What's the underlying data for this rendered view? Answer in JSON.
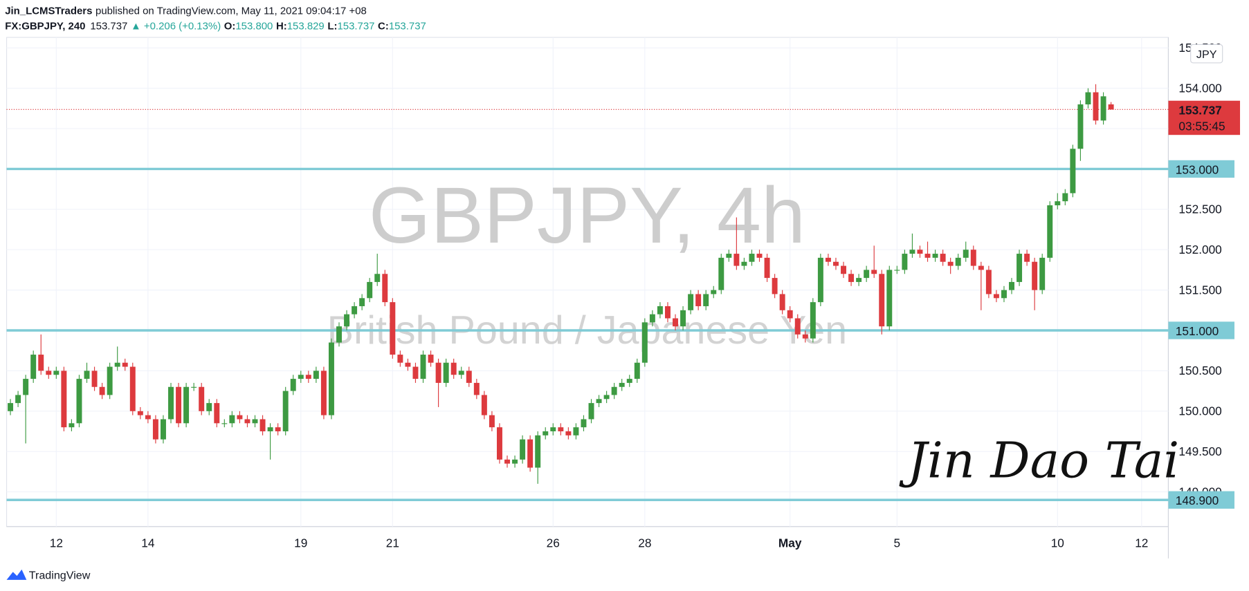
{
  "header": {
    "publisher": "Jin_LCMSTraders",
    "published": "published on TradingView.com, May 11, 2021 09:04:17 +08",
    "symbol": "FX:GBPJPY, 240",
    "last": "153.737",
    "change": "▲ +0.206 (+0.13%)",
    "ohlc": [
      {
        "label": "O:",
        "value": "153.800"
      },
      {
        "label": "H:",
        "value": "153.829"
      },
      {
        "label": "L:",
        "value": "153.737"
      },
      {
        "label": "C:",
        "value": "153.737"
      }
    ]
  },
  "chart_data": {
    "type": "candlestick",
    "watermark": {
      "symbol": "GBPJPY, 4h",
      "description": "British Pound / Japanese Yen"
    },
    "currency": "JPY",
    "up_color": "#3d9a42",
    "down_color": "#dd3a3e",
    "level_color": "#7fcbd6",
    "grid": true,
    "ylim": [
      148.57,
      154.63
    ],
    "yticks": [
      {
        "value": 149,
        "label": "149.000"
      },
      {
        "value": 149.5,
        "label": "149.500"
      },
      {
        "value": 150,
        "label": "150.000"
      },
      {
        "value": 150.5,
        "label": "150.500"
      },
      {
        "value": 151,
        "label": "151.000"
      },
      {
        "value": 151.5,
        "label": "151.500"
      },
      {
        "value": 152,
        "label": "152.000"
      },
      {
        "value": 152.5,
        "label": "152.500"
      },
      {
        "value": 153,
        "label": "153.000"
      },
      {
        "value": 153.5,
        "label": "153.500"
      },
      {
        "value": 154,
        "label": "154.000"
      },
      {
        "value": 154.5,
        "label": "154.500"
      }
    ],
    "levels": [
      {
        "value": 153,
        "label": "153.000"
      },
      {
        "value": 151,
        "label": "151.000"
      },
      {
        "value": 148.9,
        "label": "148.900"
      }
    ],
    "last_price": {
      "value": 153.737,
      "label": "153.737",
      "countdown": "03:55:45"
    },
    "categories": [
      null,
      null,
      null,
      null,
      null,
      null,
      "12",
      null,
      null,
      null,
      null,
      null,
      null,
      null,
      null,
      null,
      null,
      null,
      "14",
      null,
      null,
      null,
      null,
      null,
      null,
      null,
      null,
      null,
      null,
      null,
      null,
      null,
      null,
      null,
      null,
      null,
      null,
      null,
      "19",
      null,
      null,
      null,
      null,
      null,
      null,
      null,
      null,
      null,
      null,
      null,
      "21",
      null,
      null,
      null,
      null,
      null,
      null,
      null,
      null,
      null,
      null,
      null,
      null,
      null,
      null,
      null,
      null,
      null,
      null,
      null,
      null,
      "26",
      null,
      null,
      null,
      null,
      null,
      null,
      null,
      null,
      null,
      null,
      null,
      "28",
      null,
      null,
      null,
      null,
      null,
      null,
      null,
      null,
      null,
      null,
      null,
      null,
      null,
      null,
      null,
      null,
      null,
      null,
      "May",
      null,
      null,
      null,
      null,
      null,
      null,
      null,
      null,
      null,
      null,
      null,
      null,
      null,
      "5",
      null,
      null,
      null,
      null,
      null,
      null,
      null,
      null,
      null,
      null,
      null,
      null,
      null,
      null,
      null,
      null,
      null,
      null,
      null,
      null,
      "10",
      null,
      null,
      null,
      null,
      null,
      null,
      null,
      null,
      null,
      null,
      "12",
      null,
      null,
      null
    ],
    "candles": [
      [
        150.0,
        150.15,
        149.95,
        150.1
      ],
      [
        150.1,
        150.25,
        150.05,
        150.2
      ],
      [
        150.2,
        150.45,
        149.6,
        150.4
      ],
      [
        150.4,
        150.75,
        150.35,
        150.7
      ],
      [
        150.7,
        150.95,
        150.45,
        150.5
      ],
      [
        150.5,
        150.55,
        150.4,
        150.45
      ],
      [
        150.45,
        150.55,
        150.4,
        150.5
      ],
      [
        150.5,
        150.55,
        149.75,
        149.8
      ],
      [
        149.8,
        149.9,
        149.75,
        149.85
      ],
      [
        149.85,
        150.45,
        149.8,
        150.4
      ],
      [
        150.4,
        150.6,
        150.35,
        150.5
      ],
      [
        150.5,
        150.55,
        150.25,
        150.3
      ],
      [
        150.3,
        150.35,
        150.15,
        150.2
      ],
      [
        150.2,
        150.6,
        150.15,
        150.55
      ],
      [
        150.55,
        150.8,
        150.5,
        150.6
      ],
      [
        150.6,
        150.65,
        150.5,
        150.55
      ],
      [
        150.55,
        150.6,
        149.95,
        150.0
      ],
      [
        150.0,
        150.05,
        149.9,
        149.95
      ],
      [
        149.95,
        150.0,
        149.85,
        149.9
      ],
      [
        149.9,
        149.95,
        149.6,
        149.65
      ],
      [
        149.65,
        149.95,
        149.6,
        149.9
      ],
      [
        149.9,
        150.35,
        149.85,
        150.3
      ],
      [
        150.3,
        150.35,
        149.8,
        149.85
      ],
      [
        149.85,
        150.35,
        149.8,
        150.3
      ],
      [
        150.3,
        150.35,
        150.25,
        150.3
      ],
      [
        150.3,
        150.35,
        149.95,
        150.0
      ],
      [
        150.0,
        150.15,
        149.95,
        150.1
      ],
      [
        150.1,
        150.15,
        149.8,
        149.85
      ],
      [
        149.85,
        149.9,
        149.8,
        149.85
      ],
      [
        149.85,
        150.0,
        149.8,
        149.95
      ],
      [
        149.95,
        150.0,
        149.85,
        149.9
      ],
      [
        149.9,
        149.95,
        149.8,
        149.85
      ],
      [
        149.85,
        149.95,
        149.8,
        149.9
      ],
      [
        149.9,
        149.95,
        149.7,
        149.75
      ],
      [
        149.75,
        149.85,
        149.4,
        149.8
      ],
      [
        149.8,
        149.85,
        149.7,
        149.75
      ],
      [
        149.75,
        150.3,
        149.7,
        150.25
      ],
      [
        150.25,
        150.45,
        150.2,
        150.4
      ],
      [
        150.4,
        150.5,
        150.35,
        150.45
      ],
      [
        150.45,
        150.5,
        150.35,
        150.4
      ],
      [
        150.4,
        150.55,
        150.35,
        150.5
      ],
      [
        150.5,
        150.55,
        149.9,
        149.95
      ],
      [
        149.95,
        150.9,
        149.9,
        150.85
      ],
      [
        150.85,
        151.1,
        150.8,
        151.05
      ],
      [
        151.05,
        151.25,
        151.0,
        151.2
      ],
      [
        151.2,
        151.35,
        151.15,
        151.3
      ],
      [
        151.3,
        151.45,
        151.25,
        151.4
      ],
      [
        151.4,
        151.65,
        151.35,
        151.6
      ],
      [
        151.6,
        151.95,
        151.55,
        151.7
      ],
      [
        151.7,
        151.75,
        151.3,
        151.35
      ],
      [
        151.35,
        151.4,
        150.65,
        150.7
      ],
      [
        150.7,
        150.75,
        150.55,
        150.6
      ],
      [
        150.6,
        150.65,
        150.5,
        150.55
      ],
      [
        150.55,
        150.6,
        150.35,
        150.4
      ],
      [
        150.4,
        150.75,
        150.35,
        150.7
      ],
      [
        150.7,
        150.75,
        150.55,
        150.6
      ],
      [
        150.6,
        150.65,
        150.05,
        150.35
      ],
      [
        150.35,
        150.65,
        150.3,
        150.6
      ],
      [
        150.6,
        150.65,
        150.4,
        150.45
      ],
      [
        150.45,
        150.55,
        150.4,
        150.5
      ],
      [
        150.5,
        150.55,
        150.3,
        150.35
      ],
      [
        150.35,
        150.4,
        150.15,
        150.2
      ],
      [
        150.2,
        150.25,
        149.9,
        149.95
      ],
      [
        149.95,
        150.0,
        149.75,
        149.8
      ],
      [
        149.8,
        149.85,
        149.35,
        149.4
      ],
      [
        149.4,
        149.45,
        149.3,
        149.35
      ],
      [
        149.35,
        149.45,
        149.3,
        149.4
      ],
      [
        149.4,
        149.7,
        149.35,
        149.65
      ],
      [
        149.65,
        149.7,
        149.25,
        149.3
      ],
      [
        149.3,
        149.75,
        149.1,
        149.7
      ],
      [
        149.7,
        149.8,
        149.65,
        149.75
      ],
      [
        149.75,
        149.85,
        149.7,
        149.8
      ],
      [
        149.8,
        149.85,
        149.7,
        149.75
      ],
      [
        149.75,
        149.8,
        149.65,
        149.7
      ],
      [
        149.7,
        149.85,
        149.65,
        149.8
      ],
      [
        149.8,
        149.95,
        149.75,
        149.9
      ],
      [
        149.9,
        150.15,
        149.85,
        150.1
      ],
      [
        150.1,
        150.2,
        150.05,
        150.15
      ],
      [
        150.15,
        150.25,
        150.1,
        150.2
      ],
      [
        150.2,
        150.35,
        150.15,
        150.3
      ],
      [
        150.3,
        150.4,
        150.25,
        150.35
      ],
      [
        150.35,
        150.45,
        150.3,
        150.4
      ],
      [
        150.4,
        150.65,
        150.35,
        150.6
      ],
      [
        150.6,
        151.15,
        150.55,
        151.1
      ],
      [
        151.1,
        151.25,
        151.05,
        151.2
      ],
      [
        151.2,
        151.35,
        151.15,
        151.3
      ],
      [
        151.3,
        151.35,
        151.1,
        151.15
      ],
      [
        151.15,
        151.2,
        151.0,
        151.05
      ],
      [
        151.05,
        151.3,
        151.0,
        151.25
      ],
      [
        151.25,
        151.5,
        151.2,
        151.45
      ],
      [
        151.45,
        151.5,
        151.25,
        151.3
      ],
      [
        151.3,
        151.5,
        151.25,
        151.45
      ],
      [
        151.45,
        151.55,
        151.4,
        151.5
      ],
      [
        151.5,
        151.95,
        151.45,
        151.9
      ],
      [
        151.9,
        152.0,
        151.85,
        151.95
      ],
      [
        151.95,
        152.4,
        151.75,
        151.8
      ],
      [
        151.8,
        151.9,
        151.75,
        151.85
      ],
      [
        151.85,
        152.0,
        151.8,
        151.95
      ],
      [
        151.95,
        152.0,
        151.85,
        151.9
      ],
      [
        151.9,
        151.95,
        151.6,
        151.65
      ],
      [
        151.65,
        151.7,
        151.4,
        151.45
      ],
      [
        151.45,
        151.5,
        151.2,
        151.25
      ],
      [
        151.25,
        151.3,
        151.1,
        151.15
      ],
      [
        151.15,
        151.2,
        150.9,
        150.95
      ],
      [
        150.95,
        151.0,
        150.85,
        150.9
      ],
      [
        150.9,
        151.4,
        150.85,
        151.35
      ],
      [
        151.35,
        151.95,
        151.3,
        151.9
      ],
      [
        151.9,
        151.95,
        151.8,
        151.85
      ],
      [
        151.85,
        151.9,
        151.75,
        151.8
      ],
      [
        151.8,
        151.85,
        151.65,
        151.7
      ],
      [
        151.7,
        151.75,
        151.55,
        151.6
      ],
      [
        151.6,
        151.7,
        151.55,
        151.65
      ],
      [
        151.65,
        151.8,
        151.6,
        151.75
      ],
      [
        151.75,
        152.05,
        151.65,
        151.7
      ],
      [
        151.7,
        151.75,
        150.95,
        151.05
      ],
      [
        151.05,
        151.8,
        151.0,
        151.75
      ],
      [
        151.75,
        151.8,
        151.7,
        151.75
      ],
      [
        151.75,
        152.0,
        151.7,
        151.95
      ],
      [
        151.95,
        152.2,
        151.9,
        152.0
      ],
      [
        152.0,
        152.05,
        151.9,
        151.95
      ],
      [
        151.95,
        152.1,
        151.85,
        151.9
      ],
      [
        151.9,
        152.0,
        151.85,
        151.95
      ],
      [
        151.95,
        152.0,
        151.8,
        151.85
      ],
      [
        151.85,
        151.9,
        151.7,
        151.8
      ],
      [
        151.8,
        151.95,
        151.75,
        151.9
      ],
      [
        151.9,
        152.1,
        151.85,
        152.0
      ],
      [
        152.0,
        152.05,
        151.75,
        151.8
      ],
      [
        151.8,
        151.85,
        151.25,
        151.75
      ],
      [
        151.75,
        151.8,
        151.4,
        151.45
      ],
      [
        151.45,
        151.5,
        151.35,
        151.4
      ],
      [
        151.4,
        151.55,
        151.35,
        151.5
      ],
      [
        151.5,
        151.65,
        151.45,
        151.6
      ],
      [
        151.6,
        152.0,
        151.55,
        151.95
      ],
      [
        151.95,
        152.0,
        151.8,
        151.85
      ],
      [
        151.85,
        151.9,
        151.25,
        151.5
      ],
      [
        151.5,
        151.95,
        151.45,
        151.9
      ],
      [
        151.9,
        152.6,
        151.85,
        152.55
      ],
      [
        152.55,
        152.7,
        152.5,
        152.6
      ],
      [
        152.6,
        152.75,
        152.55,
        152.7
      ],
      [
        152.7,
        153.3,
        152.65,
        153.25
      ],
      [
        153.25,
        153.85,
        153.1,
        153.8
      ],
      [
        153.8,
        154.0,
        153.75,
        153.95
      ],
      [
        153.95,
        154.05,
        153.55,
        153.6
      ],
      [
        153.6,
        153.95,
        153.55,
        153.9
      ],
      [
        153.8,
        153.829,
        153.737,
        153.737
      ],
      null,
      null,
      null,
      null,
      null,
      null,
      null
    ],
    "signature": "Jin Dao Tai"
  },
  "footer": {
    "brand": "TradingView"
  }
}
